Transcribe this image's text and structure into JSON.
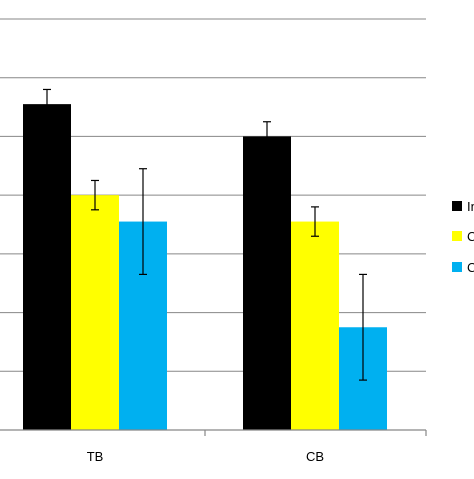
{
  "chart_data": {
    "type": "bar",
    "categories": [
      "TB",
      "CB"
    ],
    "series": [
      {
        "name": "In",
        "color": "#000000",
        "values": [
          111,
          100
        ],
        "error": [
          5,
          5
        ]
      },
      {
        "name": "C",
        "color": "#ffff00",
        "values": [
          80,
          71
        ],
        "error": [
          5,
          5
        ]
      },
      {
        "name": "C",
        "color": "#00b0f0",
        "values": [
          71,
          35
        ],
        "error": [
          18,
          18
        ]
      }
    ],
    "ylim": [
      0,
      140
    ],
    "grid": true,
    "legend_position": "right"
  }
}
